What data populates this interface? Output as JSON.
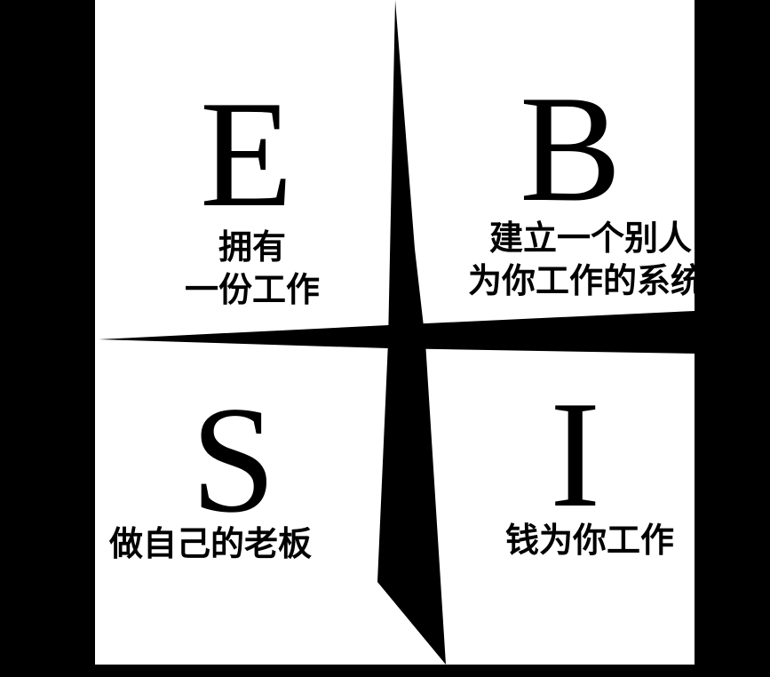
{
  "quadrants": {
    "e": {
      "letter": "E",
      "line1": "拥有",
      "line2": "一份工作"
    },
    "b": {
      "letter": "B",
      "line1": "建立一个别人",
      "line2": "为你工作的系统"
    },
    "s": {
      "letter": "S",
      "line1": "做自己的老板"
    },
    "i": {
      "letter": "I",
      "line1": "钱为你工作"
    }
  },
  "colors": {
    "background": "#000000",
    "panel": "#ffffff",
    "ink": "#000000"
  }
}
